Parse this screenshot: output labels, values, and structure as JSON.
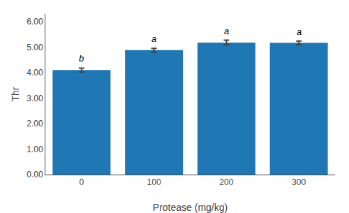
{
  "chart_data": {
    "type": "bar",
    "categories": [
      "0",
      "100",
      "200",
      "300"
    ],
    "values": [
      4.1,
      4.88,
      5.18,
      5.17
    ],
    "errors": [
      0.08,
      0.07,
      0.09,
      0.07
    ],
    "annotations": [
      {
        "category": "0",
        "text": "b"
      },
      {
        "category": "100",
        "text": "a"
      },
      {
        "category": "200",
        "text": "a"
      },
      {
        "category": "300",
        "text": "a"
      }
    ],
    "xlabel": "Protease (mg/kg)",
    "ylabel": "Thr",
    "ylim": [
      0.0,
      6.3
    ],
    "yticks": [
      {
        "value": 0.0,
        "label": "0.00"
      },
      {
        "value": 1.0,
        "label": "1.00"
      },
      {
        "value": 2.0,
        "label": "2.00"
      },
      {
        "value": 3.0,
        "label": "3.00"
      },
      {
        "value": 4.0,
        "label": "4.00"
      },
      {
        "value": 5.0,
        "label": "5.00"
      },
      {
        "value": 6.0,
        "label": "6.00"
      }
    ],
    "grid": false
  }
}
